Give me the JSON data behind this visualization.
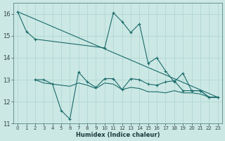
{
  "xlabel": "Humidex (Indice chaleur)",
  "bg_color": "#cce8e4",
  "grid_color": "#aad4d0",
  "line_color": "#1a6b6b",
  "ylim": [
    11,
    16.5
  ],
  "xlim": [
    -0.5,
    23.5
  ],
  "yticks": [
    11,
    12,
    13,
    14,
    15,
    16
  ],
  "xticks": [
    0,
    1,
    2,
    3,
    4,
    5,
    6,
    7,
    8,
    9,
    10,
    11,
    12,
    13,
    14,
    15,
    16,
    17,
    18,
    19,
    20,
    21,
    22,
    23
  ],
  "series": [
    {
      "x": [
        0,
        1,
        2,
        10,
        11,
        12,
        13,
        14,
        15,
        16,
        17,
        18,
        19,
        20,
        21,
        22,
        23
      ],
      "y": [
        16.1,
        15.2,
        14.85,
        14.45,
        16.05,
        15.65,
        15.15,
        15.55,
        13.75,
        14.0,
        13.4,
        12.9,
        13.3,
        12.5,
        12.5,
        12.2,
        12.2
      ],
      "marker": true
    },
    {
      "x": [
        2,
        3,
        4,
        5,
        6,
        7,
        8,
        9,
        10,
        11,
        12,
        13,
        14,
        15,
        16,
        17,
        18,
        19,
        20,
        21,
        22,
        23
      ],
      "y": [
        13.0,
        13.0,
        12.8,
        11.6,
        11.2,
        13.35,
        12.9,
        12.65,
        13.05,
        13.05,
        12.55,
        13.05,
        13.0,
        12.8,
        12.75,
        12.9,
        12.95,
        12.5,
        12.5,
        12.5,
        12.2,
        12.2
      ],
      "marker": true
    },
    {
      "x": [
        2,
        3,
        4,
        5,
        6,
        7,
        8,
        9,
        10,
        11,
        12,
        13,
        14,
        15,
        16,
        17,
        18,
        19,
        20,
        21,
        22,
        23
      ],
      "y": [
        13.0,
        12.85,
        12.8,
        12.75,
        12.7,
        12.85,
        12.75,
        12.6,
        12.85,
        12.8,
        12.55,
        12.65,
        12.6,
        12.45,
        12.45,
        12.4,
        12.5,
        12.4,
        12.4,
        12.35,
        12.2,
        12.2
      ],
      "marker": false
    },
    {
      "x": [
        0,
        23
      ],
      "y": [
        16.1,
        12.2
      ],
      "marker": false
    }
  ]
}
